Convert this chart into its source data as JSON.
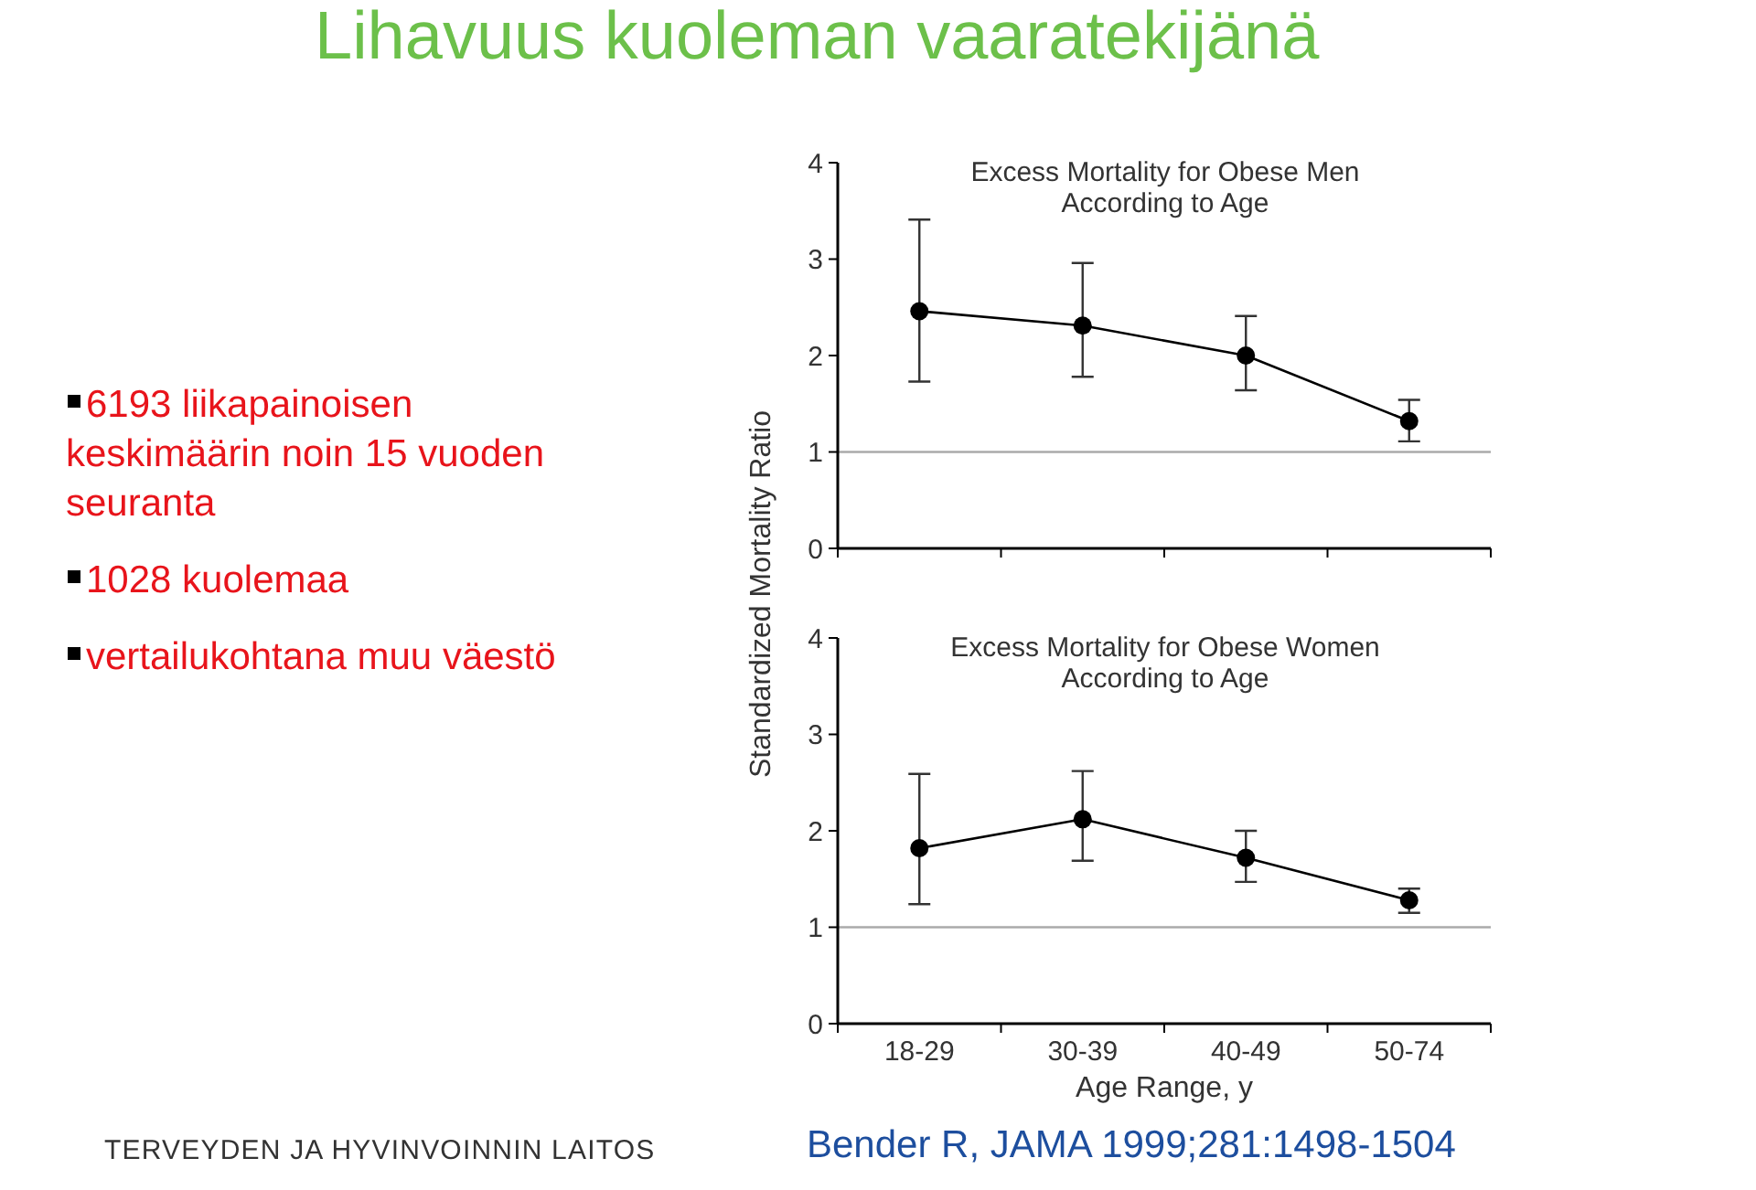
{
  "chart_data": [
    {
      "type": "other",
      "title": "Lihavuus kuoleman vaaratekijänä",
      "annotations": [
        "6193 liikapainoisen keskimäärin noin 15 vuoden seuranta",
        "1028 kuolemaa",
        "vertailukohtana muu väestö",
        "TERVEYDEN JA HYVINVOINNIN LAITOS",
        "Bender R, JAMA 1999;281:1498-1504"
      ]
    },
    {
      "type": "line",
      "title": "Excess Mortality for Obese Men According to Age",
      "ylabel": "Standardized Mortality Ratio",
      "categories": [
        null,
        null,
        null,
        null
      ],
      "tick_labels": "y",
      "series": [
        {
          "color": "#000000",
          "values": [
            2.46,
            2.31,
            2.0,
            1.32
          ],
          "errors": [
            [
              1.73,
              3.41
            ],
            [
              1.78,
              2.96
            ],
            [
              1.64,
              2.41
            ],
            [
              1.11,
              1.54
            ]
          ]
        }
      ],
      "ylim": [
        0,
        4
      ],
      "yticks": [
        0,
        1,
        2,
        3,
        4
      ],
      "ref_lines": [
        {
          "axis": "y",
          "value": 1,
          "color": "#aaaaaa"
        }
      ],
      "marker": "circle",
      "line_style": "solid"
    },
    {
      "type": "line",
      "title": "Excess Mortality for Obese Women According to Age",
      "xlabel": "Age Range, y",
      "categories": [
        "18-29",
        "30-39",
        "40-49",
        "50-74"
      ],
      "series": [
        {
          "color": "#000000",
          "values": [
            1.82,
            2.12,
            1.72,
            1.28
          ],
          "errors": [
            [
              1.24,
              2.59
            ],
            [
              1.69,
              2.62
            ],
            [
              1.47,
              2.0
            ],
            [
              1.15,
              1.4
            ]
          ]
        }
      ],
      "ylim": [
        0,
        4
      ],
      "yticks": [
        0,
        1,
        2,
        3,
        4
      ],
      "ref_lines": [
        {
          "axis": "y",
          "value": 1,
          "color": "#aaaaaa"
        }
      ],
      "marker": "circle",
      "line_style": "solid"
    }
  ]
}
